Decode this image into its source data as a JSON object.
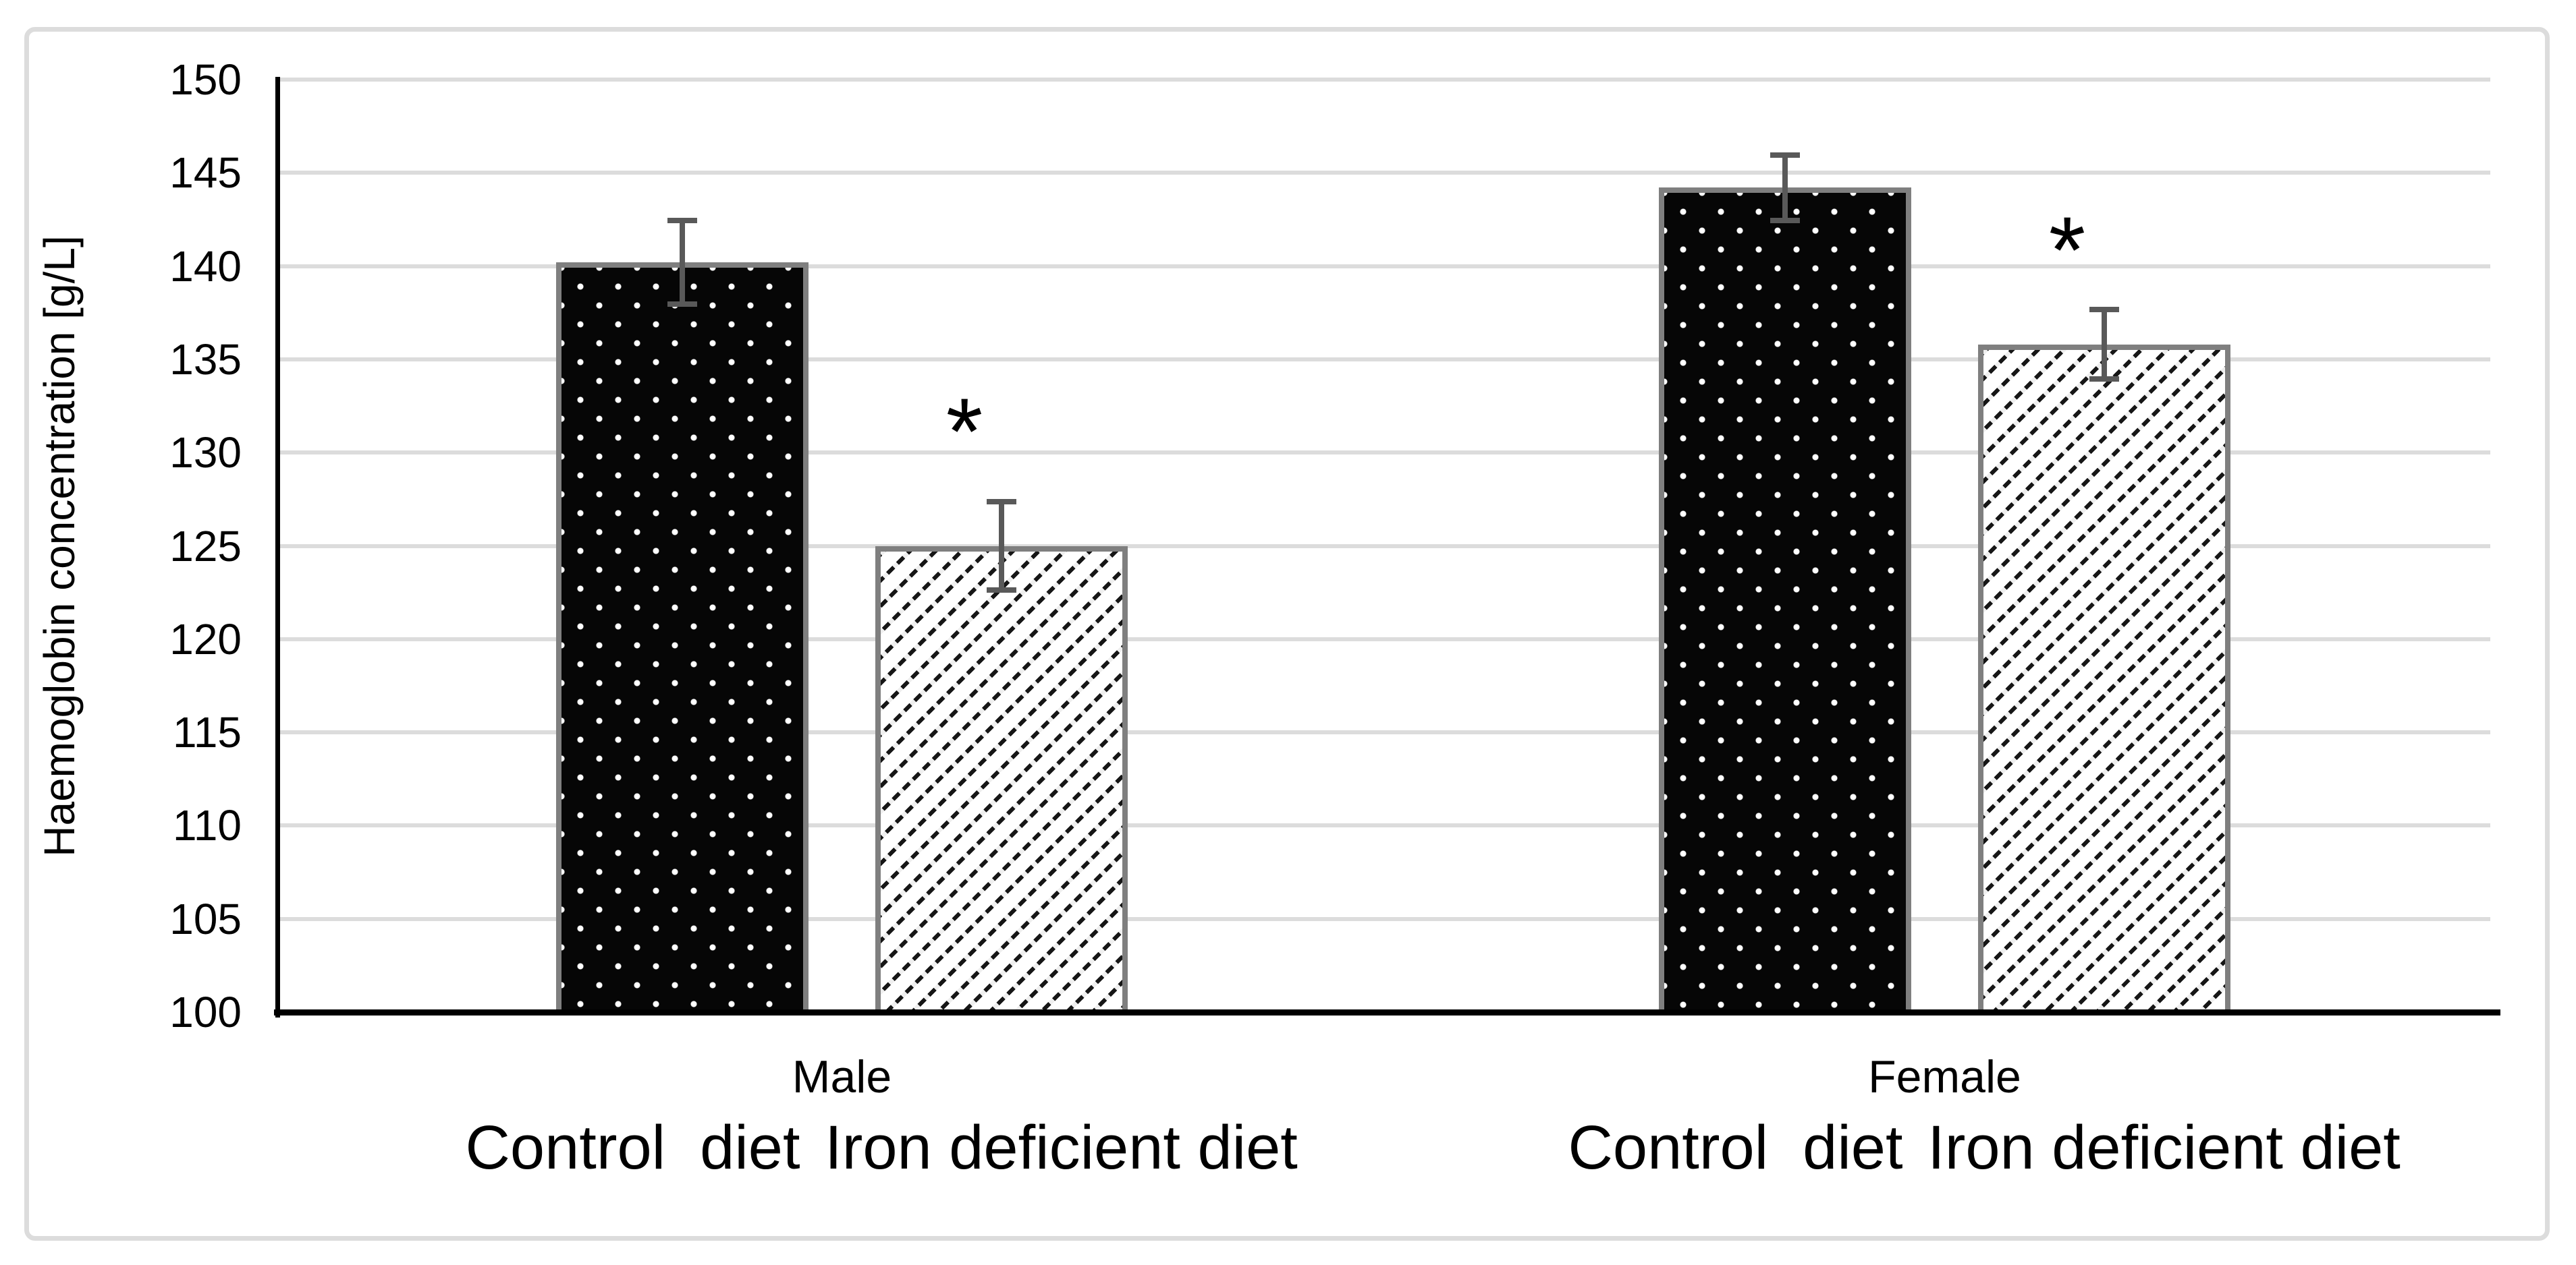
{
  "chart_data": {
    "type": "bar",
    "title": "",
    "ylabel": "Haemoglobin concentration [g/L]",
    "xlabel": "",
    "ylim": [
      100,
      150
    ],
    "ytick_step": 5,
    "yticks": [
      "150",
      "145",
      "140",
      "135",
      "130",
      "125",
      "120",
      "115",
      "110",
      "105",
      "100"
    ],
    "grid": true,
    "legend": "none",
    "categories": [
      "Male",
      "Female"
    ],
    "series": [
      {
        "name": "Control diet",
        "pattern": "dots",
        "values": [
          140.2,
          144.2
        ],
        "errors": [
          2.4,
          1.9
        ]
      },
      {
        "name": "Iron deficient diet",
        "pattern": "hatch",
        "values": [
          125.0,
          135.8
        ],
        "errors": [
          2.5,
          2.0
        ]
      }
    ],
    "series_display_labels": [
      "Control  diet",
      "Iron deficient diet"
    ],
    "annotations": [
      {
        "text": "*",
        "category": "Male",
        "series": "Iron deficient diet",
        "y": 131.9
      },
      {
        "text": "*",
        "category": "Female",
        "series": "Iron deficient diet",
        "y": 141.6
      }
    ]
  },
  "colors": {
    "background": "#ffffff",
    "border": "#dcdcdc",
    "gridline": "#dcdcdc",
    "axis": "#000000",
    "error_bar": "#595959",
    "bar_outline": "#7f7f7f",
    "bar_dark_fill": "#060606",
    "text": "#000000"
  }
}
